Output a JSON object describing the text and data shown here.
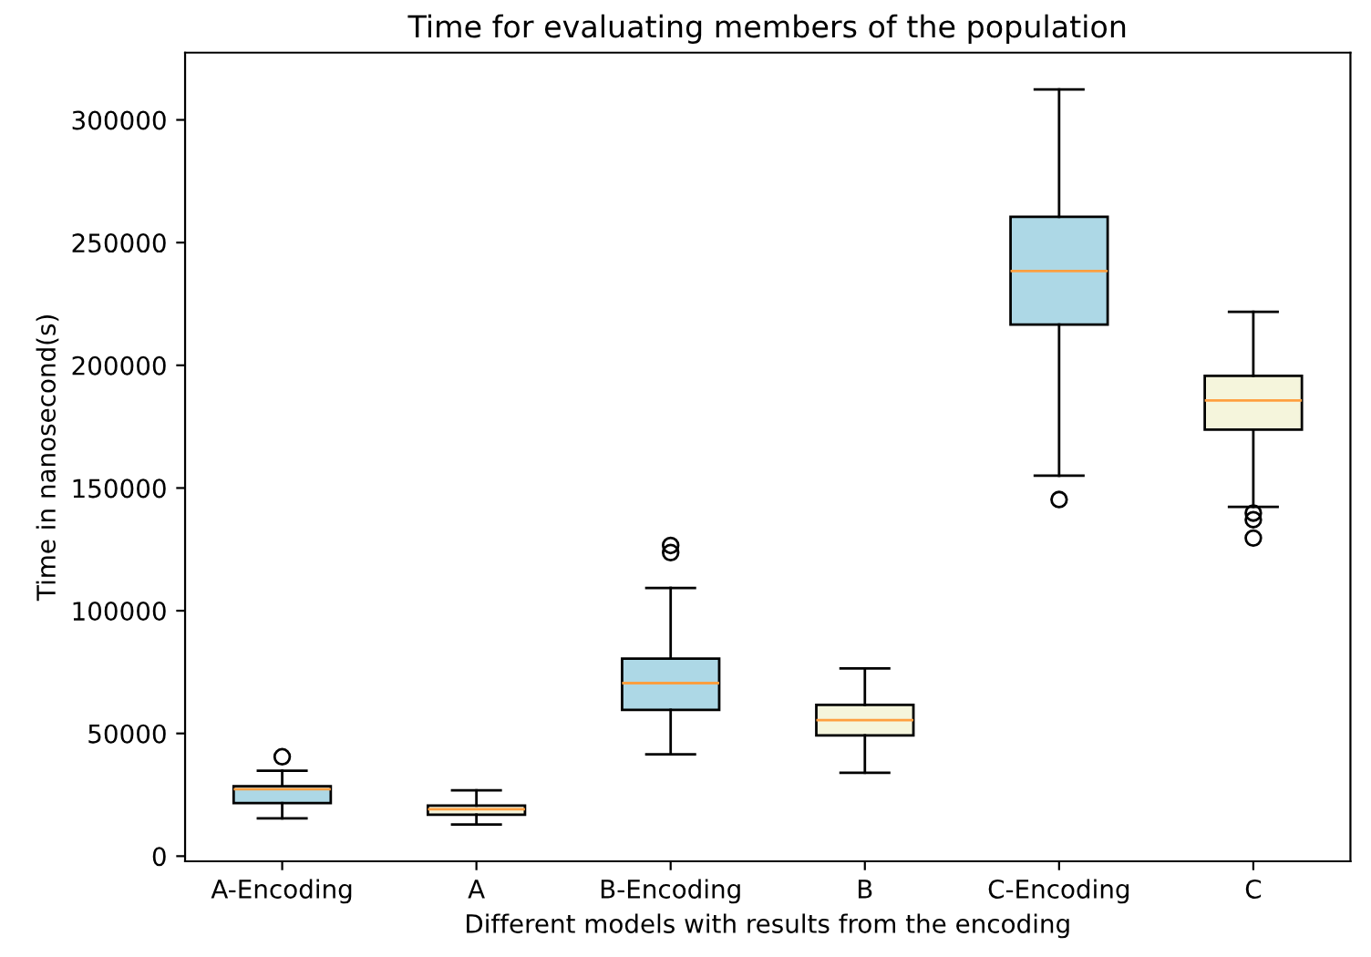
{
  "chart_data": {
    "type": "box",
    "title": "Time for evaluating members of the population",
    "xlabel": "Different models with results from the encoding",
    "ylabel": "Time in nanosecond(s)",
    "categories": [
      "A-Encoding",
      "A",
      "B-Encoding",
      "B",
      "C-Encoding",
      "C"
    ],
    "colors": [
      "#add8e6",
      "#f5f5dc",
      "#add8e6",
      "#f5f5dc",
      "#add8e6",
      "#f5f5dc"
    ],
    "boxes": [
      {
        "low": 15400,
        "q1": 21600,
        "median": 27300,
        "q3": 28500,
        "high": 34800,
        "outliers": [
          40500
        ]
      },
      {
        "low": 12900,
        "q1": 16900,
        "median": 19100,
        "q3": 20600,
        "high": 26800
      },
      {
        "low": 41500,
        "q1": 59600,
        "median": 70500,
        "q3": 80500,
        "high": 109300,
        "outliers": [
          123700,
          126600
        ]
      },
      {
        "low": 34000,
        "q1": 49200,
        "median": 55400,
        "q3": 61600,
        "high": 76500
      },
      {
        "low": 155000,
        "q1": 216600,
        "median": 238400,
        "q3": 260500,
        "high": 312400,
        "outliers": [
          145300
        ]
      },
      {
        "low": 142300,
        "q1": 173800,
        "median": 185700,
        "q3": 195700,
        "high": 221800,
        "outliers": [
          139800,
          137100,
          129600
        ]
      }
    ],
    "ylim": [
      -2100,
      327400
    ],
    "yticks": [
      0,
      50000,
      100000,
      150000,
      200000,
      250000,
      300000
    ],
    "grid": false
  }
}
